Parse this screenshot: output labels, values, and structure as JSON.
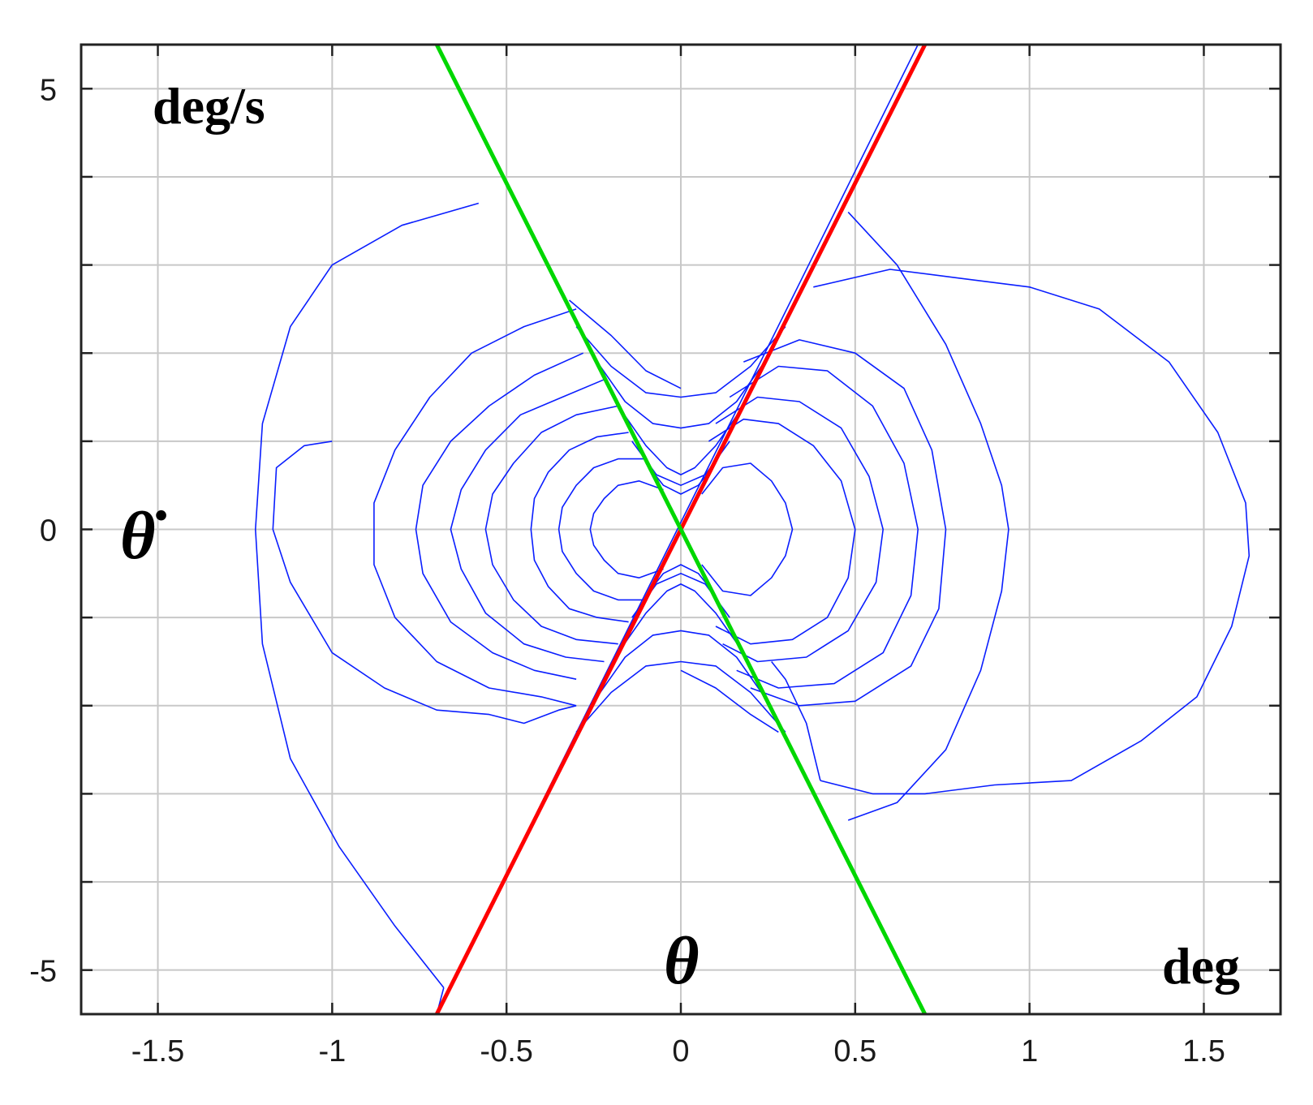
{
  "chart_data": {
    "type": "line",
    "title": "",
    "xlabel": "θ",
    "ylabel": "θ̇",
    "x_unit": "deg",
    "y_unit": "deg/s",
    "xlim": [
      -1.72,
      1.72
    ],
    "ylim": [
      -5.5,
      5.5
    ],
    "x_ticks": [
      -1.5,
      -1,
      -0.5,
      0,
      0.5,
      1,
      1.5
    ],
    "x_tick_labels": [
      "-1.5",
      "-1",
      "-0.5",
      "0",
      "0.5",
      "1",
      "1.5"
    ],
    "y_ticks": [
      -5,
      0,
      5
    ],
    "y_tick_labels": [
      "-5",
      "0",
      "5"
    ],
    "y_minor_grid": [
      -4,
      -3,
      -2,
      -1,
      1,
      2,
      3,
      4
    ],
    "grid": true,
    "colors": {
      "trajectory": "#0a1eff",
      "red_line": "#ff0000",
      "green_line": "#00d700"
    },
    "series": [
      {
        "kind": "line",
        "color": "#ff0000",
        "x": [
          -0.7,
          0.7
        ],
        "y": [
          -5.5,
          5.5
        ]
      },
      {
        "kind": "line",
        "color": "#00d700",
        "x": [
          -0.7,
          0.7
        ],
        "y": [
          5.5,
          -5.5
        ]
      },
      {
        "kind": "trajectory",
        "color": "#0a1eff",
        "segments": [
          {
            "x": [
              -0.58,
              -0.8,
              -1.0,
              -1.12,
              -1.2,
              -1.22,
              -1.2,
              -1.12,
              -0.98,
              -0.82,
              -0.68
            ],
            "y": [
              3.7,
              3.45,
              3.0,
              2.3,
              1.2,
              0.0,
              -1.3,
              -2.6,
              -3.6,
              -4.5,
              -5.2
            ]
          },
          {
            "x": [
              -0.68,
              -0.7,
              0.68,
              0.7
            ],
            "y": [
              -5.2,
              -5.5,
              5.5,
              5.5
            ]
          },
          {
            "x": [
              0.48,
              0.62,
              0.76,
              0.86,
              0.92,
              0.94,
              0.92,
              0.86,
              0.76,
              0.62,
              0.48
            ],
            "y": [
              3.6,
              3.0,
              2.1,
              1.2,
              0.5,
              0.0,
              -0.7,
              -1.6,
              -2.5,
              -3.1,
              -3.3
            ]
          },
          {
            "x": [
              0.38,
              0.6,
              0.8,
              1.0,
              1.2,
              1.4,
              1.54,
              1.62,
              1.63,
              1.58,
              1.48,
              1.32,
              1.12,
              0.9,
              0.7,
              0.55,
              0.4
            ],
            "y": [
              2.75,
              2.95,
              2.85,
              2.75,
              2.5,
              1.9,
              1.1,
              0.3,
              -0.3,
              -1.1,
              -1.9,
              -2.4,
              -2.85,
              -2.9,
              -3.0,
              -3.0,
              -2.85
            ]
          },
          {
            "x": [
              0.4,
              0.36,
              0.3,
              0.26
            ],
            "y": [
              -2.85,
              -2.2,
              -1.7,
              -1.5
            ]
          },
          {
            "x": [
              -1.0,
              -1.08,
              -1.16,
              -1.17,
              -1.12,
              -1.0,
              -0.85,
              -0.7,
              -0.55,
              -0.45,
              -0.35,
              -0.3
            ],
            "y": [
              1.0,
              0.95,
              0.7,
              0.0,
              -0.6,
              -1.4,
              -1.8,
              -2.05,
              -2.1,
              -2.2,
              -2.05,
              -2.0
            ]
          },
          {
            "x": [
              -0.3,
              -0.45,
              -0.6,
              -0.72,
              -0.82,
              -0.88,
              -0.88,
              -0.82,
              -0.7,
              -0.55,
              -0.4,
              -0.3
            ],
            "y": [
              2.5,
              2.3,
              2.0,
              1.5,
              0.9,
              0.3,
              -0.4,
              -1.0,
              -1.5,
              -1.8,
              -1.9,
              -2.0
            ]
          },
          {
            "x": [
              -0.28,
              -0.42,
              -0.55,
              -0.66,
              -0.74,
              -0.76,
              -0.74,
              -0.66,
              -0.54,
              -0.42,
              -0.3
            ],
            "y": [
              2.0,
              1.75,
              1.4,
              1.0,
              0.5,
              0.0,
              -0.5,
              -1.05,
              -1.4,
              -1.6,
              -1.7
            ]
          },
          {
            "x": [
              -0.22,
              -0.34,
              -0.46,
              -0.56,
              -0.63,
              -0.66,
              -0.63,
              -0.56,
              -0.45,
              -0.33,
              -0.22
            ],
            "y": [
              1.7,
              1.5,
              1.3,
              0.9,
              0.45,
              0.0,
              -0.45,
              -0.95,
              -1.3,
              -1.45,
              -1.5
            ]
          },
          {
            "x": [
              -0.18,
              -0.3,
              -0.4,
              -0.48,
              -0.54,
              -0.56,
              -0.54,
              -0.48,
              -0.4,
              -0.3,
              -0.18
            ],
            "y": [
              1.4,
              1.3,
              1.1,
              0.75,
              0.4,
              0.0,
              -0.4,
              -0.8,
              -1.1,
              -1.25,
              -1.3
            ]
          },
          {
            "x": [
              -0.15,
              -0.24,
              -0.32,
              -0.38,
              -0.42,
              -0.43,
              -0.42,
              -0.38,
              -0.32,
              -0.24,
              -0.15
            ],
            "y": [
              1.1,
              1.05,
              0.9,
              0.65,
              0.35,
              0.0,
              -0.35,
              -0.65,
              -0.9,
              -1.0,
              -1.05
            ]
          },
          {
            "x": [
              -0.1,
              -0.18,
              -0.25,
              -0.3,
              -0.34,
              -0.35,
              -0.34,
              -0.3,
              -0.25,
              -0.18,
              -0.1
            ],
            "y": [
              0.8,
              0.8,
              0.7,
              0.5,
              0.25,
              0.0,
              -0.25,
              -0.5,
              -0.7,
              -0.8,
              -0.8
            ]
          },
          {
            "x": [
              -0.05,
              -0.12,
              -0.18,
              -0.22,
              -0.25,
              -0.26,
              -0.25,
              -0.22,
              -0.18,
              -0.12,
              -0.05
            ],
            "y": [
              0.45,
              0.55,
              0.5,
              0.35,
              0.18,
              0.0,
              -0.18,
              -0.35,
              -0.5,
              -0.55,
              -0.45
            ]
          },
          {
            "x": [
              0.08,
              0.18,
              0.28,
              0.38,
              0.46,
              0.5,
              0.48,
              0.42,
              0.32,
              0.2,
              0.1
            ],
            "y": [
              1.0,
              1.25,
              1.2,
              0.95,
              0.55,
              0.0,
              -0.55,
              -1.0,
              -1.25,
              -1.3,
              -1.1
            ]
          },
          {
            "x": [
              0.1,
              0.22,
              0.34,
              0.46,
              0.54,
              0.58,
              0.56,
              0.48,
              0.36,
              0.22,
              0.12
            ],
            "y": [
              1.2,
              1.5,
              1.45,
              1.15,
              0.6,
              0.0,
              -0.6,
              -1.15,
              -1.45,
              -1.5,
              -1.3
            ]
          },
          {
            "x": [
              0.14,
              0.28,
              0.42,
              0.55,
              0.64,
              0.68,
              0.66,
              0.58,
              0.44,
              0.28,
              0.16
            ],
            "y": [
              1.5,
              1.85,
              1.8,
              1.4,
              0.75,
              0.0,
              -0.75,
              -1.4,
              -1.75,
              -1.8,
              -1.6
            ]
          },
          {
            "x": [
              0.18,
              0.34,
              0.5,
              0.64,
              0.72,
              0.76,
              0.74,
              0.66,
              0.5,
              0.34,
              0.2
            ],
            "y": [
              1.9,
              2.15,
              2.0,
              1.6,
              0.9,
              0.0,
              -0.9,
              -1.55,
              -1.95,
              -2.0,
              -1.8
            ]
          },
          {
            "x": [
              0.06,
              0.12,
              0.2,
              0.26,
              0.3,
              0.32,
              0.3,
              0.26,
              0.2,
              0.12,
              0.06
            ],
            "y": [
              0.4,
              0.7,
              0.75,
              0.55,
              0.3,
              0.0,
              -0.3,
              -0.55,
              -0.75,
              -0.7,
              -0.4
            ]
          },
          {
            "x": [
              -0.3,
              -0.2,
              -0.1,
              0.0,
              0.1,
              0.2,
              0.3
            ],
            "y": [
              2.3,
              1.85,
              1.55,
              1.5,
              1.55,
              1.85,
              2.3
            ]
          },
          {
            "x": [
              -0.24,
              -0.16,
              -0.08,
              0.0,
              0.08,
              0.16,
              0.24
            ],
            "y": [
              1.9,
              1.45,
              1.2,
              1.15,
              1.2,
              1.45,
              1.9
            ]
          },
          {
            "x": [
              -0.18,
              -0.1,
              -0.04,
              0.0,
              0.04,
              0.1,
              0.18
            ],
            "y": [
              1.4,
              0.95,
              0.7,
              0.62,
              0.7,
              0.95,
              1.4
            ]
          },
          {
            "x": [
              -0.14,
              -0.07,
              0.0,
              0.07,
              0.14
            ],
            "y": [
              1.0,
              0.62,
              0.5,
              0.62,
              1.0
            ]
          },
          {
            "x": [
              -0.1,
              -0.05,
              0.0,
              0.05,
              0.1
            ],
            "y": [
              0.75,
              0.5,
              0.4,
              0.5,
              0.75
            ]
          },
          {
            "x": [
              -0.3,
              -0.2,
              -0.1,
              0.0,
              0.1,
              0.2,
              0.3
            ],
            "y": [
              -2.3,
              -1.85,
              -1.55,
              -1.5,
              -1.55,
              -1.85,
              -2.3
            ]
          },
          {
            "x": [
              -0.24,
              -0.16,
              -0.08,
              0.0,
              0.08,
              0.16,
              0.24
            ],
            "y": [
              -1.9,
              -1.45,
              -1.2,
              -1.15,
              -1.2,
              -1.45,
              -1.9
            ]
          },
          {
            "x": [
              -0.18,
              -0.1,
              -0.04,
              0.0,
              0.04,
              0.1,
              0.18
            ],
            "y": [
              -1.4,
              -0.95,
              -0.7,
              -0.62,
              -0.7,
              -0.95,
              -1.4
            ]
          },
          {
            "x": [
              -0.14,
              -0.07,
              0.0,
              0.07,
              0.14
            ],
            "y": [
              -1.0,
              -0.62,
              -0.5,
              -0.62,
              -1.0
            ]
          },
          {
            "x": [
              -0.1,
              -0.05,
              0.0,
              0.05,
              0.1
            ],
            "y": [
              -0.75,
              -0.5,
              -0.4,
              -0.5,
              -0.75
            ]
          },
          {
            "x": [
              -0.32,
              -0.2,
              -0.1,
              0.0
            ],
            "y": [
              2.6,
              2.2,
              1.8,
              1.6
            ]
          },
          {
            "x": [
              0.0,
              0.1,
              0.2,
              0.28
            ],
            "y": [
              -1.6,
              -1.8,
              -2.1,
              -2.3
            ]
          }
        ]
      }
    ]
  }
}
